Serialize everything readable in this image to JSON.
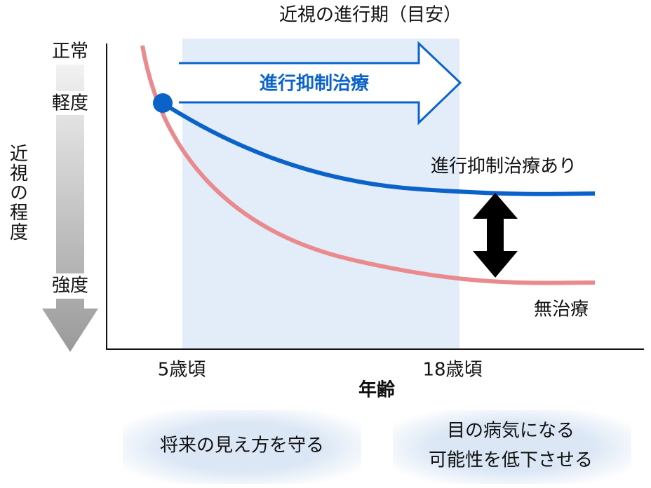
{
  "title": "近視の進行期（目安）",
  "y_axis": {
    "label": "近視の程度",
    "levels": [
      "正常",
      "軽度",
      "強度"
    ]
  },
  "x_axis": {
    "label": "年齢",
    "ticks": [
      "5歳頃",
      "18歳頃"
    ]
  },
  "arrow_label": "進行抑制治療",
  "curves": [
    "進行抑制治療あり",
    "無治療"
  ],
  "notes": [
    "将来の見え方を守る",
    [
      "目の病気になる",
      "可能性を低下させる"
    ]
  ]
}
